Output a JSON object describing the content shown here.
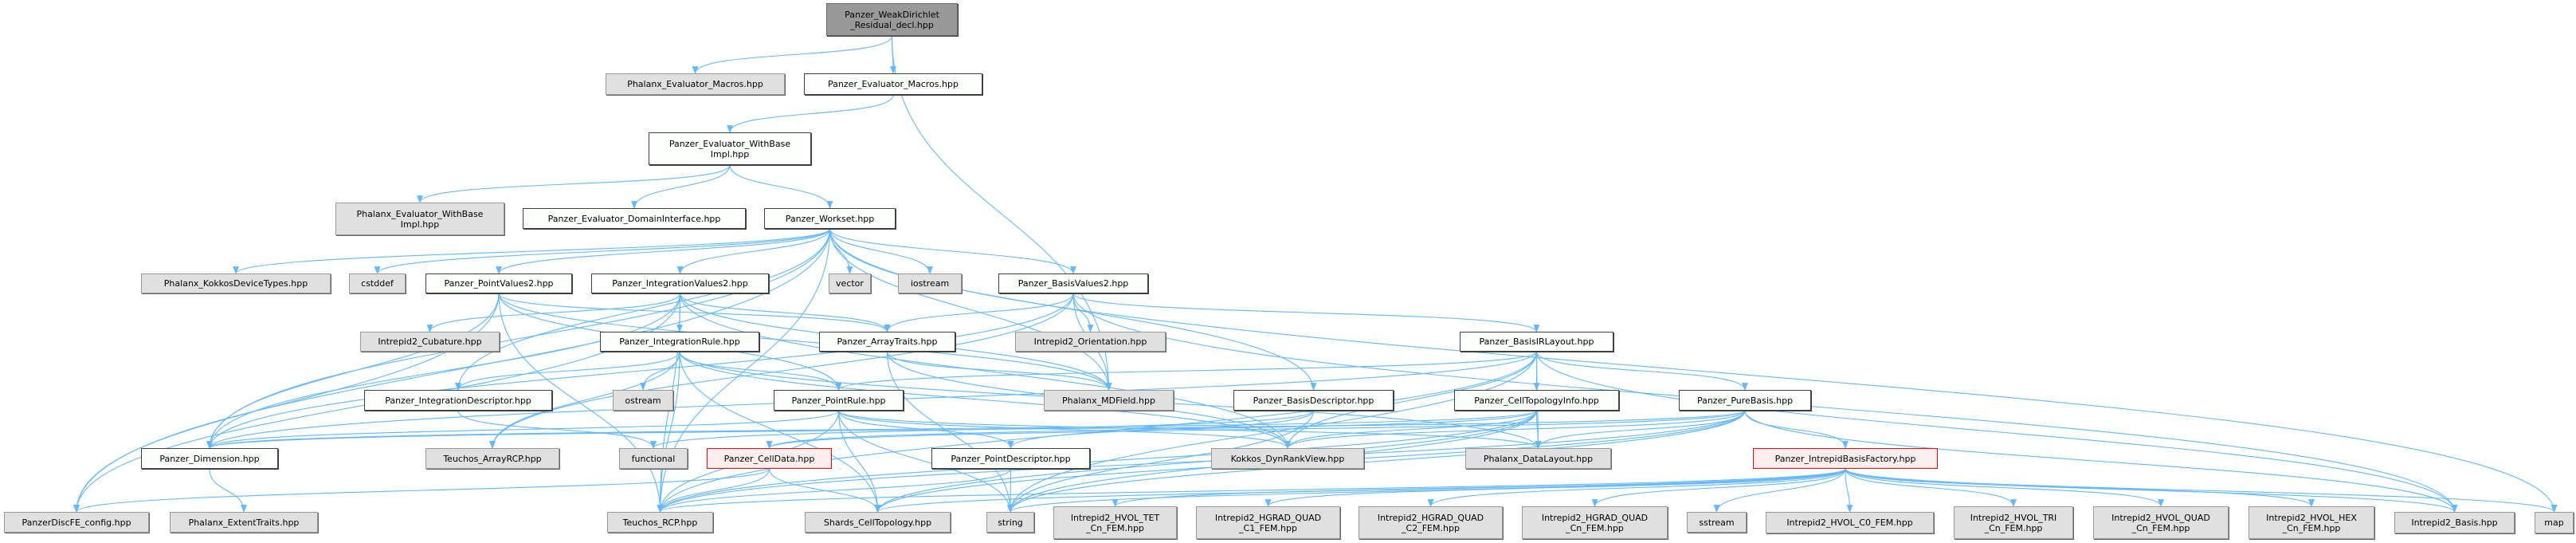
{
  "colors": {
    "edge": "#63b8ff",
    "root_fill": "#999999",
    "external_fill": "#e0e0e0",
    "local_fill": "#fcfffc",
    "incomplete_border": "#ff0000",
    "incomplete_fill": "#fff0f0"
  },
  "nodes": [
    {
      "id": "root",
      "label": "Panzer_WeakDirichlet\n_Residual_decl.hpp",
      "kind": "root"
    },
    {
      "id": "phxEvalMacros",
      "label": "Phalanx_Evaluator_Macros.hpp",
      "kind": "external"
    },
    {
      "id": "pzEvalMacros",
      "label": "Panzer_Evaluator_Macros.hpp",
      "kind": "normal"
    },
    {
      "id": "pzWithBase",
      "label": "Panzer_Evaluator_WithBase\nImpl.hpp",
      "kind": "normal"
    },
    {
      "id": "phxWithBase",
      "label": "Phalanx_Evaluator_WithBase\nImpl.hpp",
      "kind": "external"
    },
    {
      "id": "domainIf",
      "label": "Panzer_Evaluator_DomainInterface.hpp",
      "kind": "normal"
    },
    {
      "id": "workset",
      "label": "Panzer_Workset.hpp",
      "kind": "normal"
    },
    {
      "id": "kokkosDev",
      "label": "Phalanx_KokkosDeviceTypes.hpp",
      "kind": "external"
    },
    {
      "id": "cstddef",
      "label": "cstddef",
      "kind": "external"
    },
    {
      "id": "pointValues2",
      "label": "Panzer_PointValues2.hpp",
      "kind": "normal"
    },
    {
      "id": "intValues2",
      "label": "Panzer_IntegrationValues2.hpp",
      "kind": "normal"
    },
    {
      "id": "vector",
      "label": "vector",
      "kind": "external"
    },
    {
      "id": "iostream",
      "label": "iostream",
      "kind": "external"
    },
    {
      "id": "basisValues2",
      "label": "Panzer_BasisValues2.hpp",
      "kind": "normal"
    },
    {
      "id": "cubature",
      "label": "Intrepid2_Cubature.hpp",
      "kind": "external"
    },
    {
      "id": "intRule",
      "label": "Panzer_IntegrationRule.hpp",
      "kind": "normal"
    },
    {
      "id": "arrayTraits",
      "label": "Panzer_ArrayTraits.hpp",
      "kind": "normal"
    },
    {
      "id": "orientation",
      "label": "Intrepid2_Orientation.hpp",
      "kind": "external"
    },
    {
      "id": "basisIR",
      "label": "Panzer_BasisIRLayout.hpp",
      "kind": "normal"
    },
    {
      "id": "intDesc",
      "label": "Panzer_IntegrationDescriptor.hpp",
      "kind": "normal"
    },
    {
      "id": "ostream",
      "label": "ostream",
      "kind": "external"
    },
    {
      "id": "pointRule",
      "label": "Panzer_PointRule.hpp",
      "kind": "normal"
    },
    {
      "id": "mdfield",
      "label": "Phalanx_MDField.hpp",
      "kind": "external"
    },
    {
      "id": "basisDesc",
      "label": "Panzer_BasisDescriptor.hpp",
      "kind": "normal"
    },
    {
      "id": "cellTopoInfo",
      "label": "Panzer_CellTopologyInfo.hpp",
      "kind": "normal"
    },
    {
      "id": "pureBasis",
      "label": "Panzer_PureBasis.hpp",
      "kind": "normal"
    },
    {
      "id": "dimension",
      "label": "Panzer_Dimension.hpp",
      "kind": "normal"
    },
    {
      "id": "arrayRCP",
      "label": "Teuchos_ArrayRCP.hpp",
      "kind": "external"
    },
    {
      "id": "functional",
      "label": "functional",
      "kind": "external"
    },
    {
      "id": "cellData",
      "label": "Panzer_CellData.hpp",
      "kind": "red"
    },
    {
      "id": "pointDesc",
      "label": "Panzer_PointDescriptor.hpp",
      "kind": "normal"
    },
    {
      "id": "dynRank",
      "label": "Kokkos_DynRankView.hpp",
      "kind": "external"
    },
    {
      "id": "dataLayout",
      "label": "Phalanx_DataLayout.hpp",
      "kind": "external"
    },
    {
      "id": "basisFactory",
      "label": "Panzer_IntrepidBasisFactory.hpp",
      "kind": "red"
    },
    {
      "id": "discfe",
      "label": "PanzerDiscFE_config.hpp",
      "kind": "external"
    },
    {
      "id": "extentTraits",
      "label": "Phalanx_ExtentTraits.hpp",
      "kind": "external"
    },
    {
      "id": "rcp",
      "label": "Teuchos_RCP.hpp",
      "kind": "external"
    },
    {
      "id": "shards",
      "label": "Shards_CellTopology.hpp",
      "kind": "external"
    },
    {
      "id": "string",
      "label": "string",
      "kind": "external"
    },
    {
      "id": "hvolTet",
      "label": "Intrepid2_HVOL_TET\n_Cn_FEM.hpp",
      "kind": "external"
    },
    {
      "id": "hgradC1",
      "label": "Intrepid2_HGRAD_QUAD\n_C1_FEM.hpp",
      "kind": "external"
    },
    {
      "id": "hgradC2",
      "label": "Intrepid2_HGRAD_QUAD\n_C2_FEM.hpp",
      "kind": "external"
    },
    {
      "id": "hgradCn",
      "label": "Intrepid2_HGRAD_QUAD\n_Cn_FEM.hpp",
      "kind": "external"
    },
    {
      "id": "sstream",
      "label": "sstream",
      "kind": "external"
    },
    {
      "id": "hvolC0",
      "label": "Intrepid2_HVOL_C0_FEM.hpp",
      "kind": "external"
    },
    {
      "id": "hvolTri",
      "label": "Intrepid2_HVOL_TRI\n_Cn_FEM.hpp",
      "kind": "external"
    },
    {
      "id": "hvolQuad",
      "label": "Intrepid2_HVOL_QUAD\n_Cn_FEM.hpp",
      "kind": "external"
    },
    {
      "id": "hvolHex",
      "label": "Intrepid2_HVOL_HEX\n_Cn_FEM.hpp",
      "kind": "external"
    },
    {
      "id": "i2basis",
      "label": "Intrepid2_Basis.hpp",
      "kind": "external"
    },
    {
      "id": "map",
      "label": "map",
      "kind": "external"
    }
  ],
  "edges": [
    [
      "root",
      "phxEvalMacros"
    ],
    [
      "root",
      "pzEvalMacros"
    ],
    [
      "root",
      "mdfield"
    ],
    [
      "pzEvalMacros",
      "pzWithBase"
    ],
    [
      "pzWithBase",
      "phxWithBase"
    ],
    [
      "pzWithBase",
      "domainIf"
    ],
    [
      "pzWithBase",
      "workset"
    ],
    [
      "workset",
      "kokkosDev"
    ],
    [
      "workset",
      "cstddef"
    ],
    [
      "workset",
      "pointValues2"
    ],
    [
      "workset",
      "intValues2"
    ],
    [
      "workset",
      "vector"
    ],
    [
      "workset",
      "iostream"
    ],
    [
      "workset",
      "basisValues2"
    ],
    [
      "workset",
      "dimension"
    ],
    [
      "workset",
      "rcp"
    ],
    [
      "workset",
      "map"
    ],
    [
      "workset",
      "intDesc"
    ],
    [
      "workset",
      "basisDesc"
    ],
    [
      "workset",
      "discfe"
    ],
    [
      "workset",
      "mdfield"
    ],
    [
      "pointValues2",
      "arrayTraits"
    ],
    [
      "pointValues2",
      "dimension"
    ],
    [
      "pointValues2",
      "discfe"
    ],
    [
      "pointValues2",
      "rcp"
    ],
    [
      "pointValues2",
      "pointRule"
    ],
    [
      "pointValues2",
      "mdfield"
    ],
    [
      "intValues2",
      "cubature"
    ],
    [
      "intValues2",
      "intRule"
    ],
    [
      "intValues2",
      "arrayTraits"
    ],
    [
      "intValues2",
      "dimension"
    ],
    [
      "intValues2",
      "discfe"
    ],
    [
      "intValues2",
      "rcp"
    ],
    [
      "intValues2",
      "mdfield"
    ],
    [
      "intValues2",
      "dynRank"
    ],
    [
      "basisValues2",
      "arrayTraits"
    ],
    [
      "basisValues2",
      "orientation"
    ],
    [
      "basisValues2",
      "basisIR"
    ],
    [
      "basisValues2",
      "dimension"
    ],
    [
      "basisValues2",
      "mdfield"
    ],
    [
      "basisValues2",
      "i2basis"
    ],
    [
      "basisValues2",
      "arrayRCP"
    ],
    [
      "intRule",
      "intDesc"
    ],
    [
      "intRule",
      "ostream"
    ],
    [
      "intRule",
      "pointRule"
    ],
    [
      "intRule",
      "rcp"
    ],
    [
      "intRule",
      "shards"
    ],
    [
      "intRule",
      "dynRank"
    ],
    [
      "intRule",
      "dataLayout"
    ],
    [
      "intRule",
      "arrayRCP"
    ],
    [
      "arrayTraits",
      "mdfield"
    ],
    [
      "arrayTraits",
      "dynRank"
    ],
    [
      "arrayTraits",
      "string"
    ],
    [
      "basisIR",
      "pureBasis"
    ],
    [
      "basisIR",
      "cellTopoInfo"
    ],
    [
      "basisIR",
      "dynRank"
    ],
    [
      "basisIR",
      "dataLayout"
    ],
    [
      "basisIR",
      "pointRule"
    ],
    [
      "basisIR",
      "dimension"
    ],
    [
      "basisIR",
      "i2basis"
    ],
    [
      "basisIR",
      "rcp"
    ],
    [
      "basisIR",
      "string"
    ],
    [
      "intDesc",
      "functional"
    ],
    [
      "pointRule",
      "pointDesc"
    ],
    [
      "pointRule",
      "dimension"
    ],
    [
      "pointRule",
      "dynRank"
    ],
    [
      "pointRule",
      "dataLayout"
    ],
    [
      "pointRule",
      "shards"
    ],
    [
      "pointRule",
      "string"
    ],
    [
      "pointRule",
      "rcp"
    ],
    [
      "basisDesc",
      "functional"
    ],
    [
      "basisDesc",
      "string"
    ],
    [
      "basisDesc",
      "pointDesc"
    ],
    [
      "cellTopoInfo",
      "dimension"
    ],
    [
      "cellTopoInfo",
      "dynRank"
    ],
    [
      "cellTopoInfo",
      "dataLayout"
    ],
    [
      "cellTopoInfo",
      "shards"
    ],
    [
      "cellTopoInfo",
      "string"
    ],
    [
      "cellTopoInfo",
      "rcp"
    ],
    [
      "cellTopoInfo",
      "cellData"
    ],
    [
      "pureBasis",
      "basisFactory"
    ],
    [
      "pureBasis",
      "dynRank"
    ],
    [
      "pureBasis",
      "dataLayout"
    ],
    [
      "pureBasis",
      "cellData"
    ],
    [
      "pureBasis",
      "dimension"
    ],
    [
      "pureBasis",
      "string"
    ],
    [
      "pureBasis",
      "rcp"
    ],
    [
      "pureBasis",
      "i2basis"
    ],
    [
      "pureBasis",
      "shards"
    ],
    [
      "cellData",
      "discfe"
    ],
    [
      "cellData",
      "rcp"
    ],
    [
      "cellData",
      "shards"
    ],
    [
      "pointDesc",
      "string"
    ],
    [
      "pointDesc",
      "rcp"
    ],
    [
      "dimension",
      "extentTraits"
    ],
    [
      "basisFactory",
      "rcp"
    ],
    [
      "basisFactory",
      "shards"
    ],
    [
      "basisFactory",
      "string"
    ],
    [
      "basisFactory",
      "hvolTet"
    ],
    [
      "basisFactory",
      "hgradC1"
    ],
    [
      "basisFactory",
      "hgradC2"
    ],
    [
      "basisFactory",
      "hgradCn"
    ],
    [
      "basisFactory",
      "sstream"
    ],
    [
      "basisFactory",
      "hvolC0"
    ],
    [
      "basisFactory",
      "hvolTri"
    ],
    [
      "basisFactory",
      "hvolQuad"
    ],
    [
      "basisFactory",
      "hvolHex"
    ],
    [
      "basisFactory",
      "i2basis"
    ],
    [
      "basisFactory",
      "map"
    ]
  ]
}
